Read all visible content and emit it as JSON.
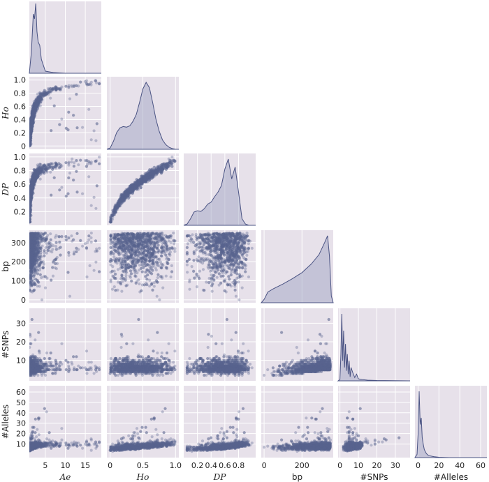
{
  "chart_data": {
    "type": "pairplot",
    "corner": true,
    "grid": true,
    "colors": {
      "panel_bg": "#e7e1ea",
      "grid": "#ffffff",
      "mark": "#5a6390",
      "kde_fill": "#a8acc6",
      "kde_line": "#4a5383"
    },
    "variables": [
      {
        "id": "Ae",
        "label": "Ae",
        "italic": true,
        "range": [
          1,
          19
        ],
        "ticks": [
          5,
          10,
          15
        ]
      },
      {
        "id": "Ho",
        "label": "Ho",
        "italic": true,
        "range": [
          -0.05,
          1.05
        ],
        "ticks": [
          0,
          0.2,
          0.4,
          0.6,
          0.8,
          1.0
        ],
        "x_ticks": [
          0,
          0.5,
          1.0
        ],
        "x_tick_labels": [
          "0",
          "0.5",
          "1.0"
        ],
        "y_tick_labels": [
          "0",
          "0.2",
          "0.4",
          "0.6",
          "0.8",
          "1.0"
        ]
      },
      {
        "id": "DP",
        "label": "DP",
        "italic": true,
        "range": [
          0,
          1.05
        ],
        "ticks": [
          0.2,
          0.4,
          0.6,
          0.8,
          1.0
        ],
        "x_ticks": [
          0.2,
          0.4,
          0.6,
          0.8
        ],
        "y_tick_labels": [
          "0.2",
          "0.4",
          "0.6",
          "0.8",
          "1.0"
        ]
      },
      {
        "id": "bp",
        "label": "bp",
        "italic": false,
        "range": [
          -15,
          365
        ],
        "ticks": [
          0,
          100,
          200,
          300
        ],
        "x_ticks": [
          0,
          200
        ]
      },
      {
        "id": "SNPs",
        "label": "#SNPs",
        "italic": false,
        "range": [
          -1,
          38
        ],
        "ticks": [
          10,
          20,
          30
        ],
        "x_ticks": [
          0,
          10,
          20,
          30
        ]
      },
      {
        "id": "Alleles",
        "label": "#Alleles",
        "italic": false,
        "range": [
          -3,
          66
        ],
        "ticks": [
          10,
          20,
          30,
          40,
          50,
          60
        ],
        "x_ticks": [
          0,
          20,
          40,
          60
        ]
      }
    ],
    "diagonal_kde": {
      "Ae": {
        "x": [
          1,
          1.5,
          2,
          2.3,
          2.6,
          2.9,
          3.2,
          3.6,
          4,
          5,
          7,
          10,
          19
        ],
        "y": [
          0,
          0.3,
          0.85,
          0.78,
          1.0,
          0.6,
          0.45,
          0.4,
          0.2,
          0.03,
          0.01,
          0,
          0
        ]
      },
      "Ho": {
        "x": [
          -0.05,
          0,
          0.05,
          0.1,
          0.15,
          0.2,
          0.25,
          0.3,
          0.35,
          0.4,
          0.45,
          0.5,
          0.55,
          0.6,
          0.65,
          0.7,
          0.75,
          0.8,
          0.85,
          0.9,
          0.95,
          1.0,
          1.05
        ],
        "y": [
          0,
          0.02,
          0.12,
          0.25,
          0.32,
          0.34,
          0.33,
          0.35,
          0.42,
          0.52,
          0.7,
          0.9,
          1.0,
          0.92,
          0.7,
          0.45,
          0.27,
          0.14,
          0.07,
          0.03,
          0.01,
          0,
          0
        ]
      },
      "DP": {
        "x": [
          0,
          0.05,
          0.1,
          0.15,
          0.2,
          0.25,
          0.3,
          0.35,
          0.4,
          0.45,
          0.5,
          0.55,
          0.6,
          0.65,
          0.7,
          0.75,
          0.8,
          0.85,
          0.9,
          0.95,
          1.0,
          1.05
        ],
        "y": [
          0,
          0.02,
          0.1,
          0.2,
          0.22,
          0.21,
          0.25,
          0.32,
          0.35,
          0.43,
          0.5,
          0.6,
          0.85,
          1.0,
          0.7,
          0.88,
          0.5,
          0.1,
          0.02,
          0,
          0,
          0
        ]
      },
      "bp": {
        "x": [
          -15,
          0,
          20,
          50,
          100,
          150,
          200,
          250,
          290,
          320,
          335,
          345,
          355,
          365
        ],
        "y": [
          0,
          0.05,
          0.16,
          0.21,
          0.28,
          0.36,
          0.45,
          0.58,
          0.72,
          0.9,
          1.0,
          0.7,
          0.1,
          0
        ]
      },
      "SNPs": {
        "x": [
          -1,
          0,
          0.5,
          1,
          1.5,
          2,
          2.5,
          3,
          3.5,
          4,
          4.5,
          5,
          5.5,
          6,
          7,
          8,
          9,
          10,
          12,
          15,
          20,
          38
        ],
        "y": [
          0,
          0.02,
          0.4,
          1.0,
          0.3,
          0.75,
          0.2,
          0.55,
          0.15,
          0.4,
          0.1,
          0.3,
          0.06,
          0.2,
          0.12,
          0.05,
          0.1,
          0.03,
          0.02,
          0.01,
          0.005,
          0
        ]
      },
      "Alleles": {
        "x": [
          -3,
          -1,
          0,
          1,
          2,
          3,
          4,
          5,
          6,
          8,
          10,
          15,
          20,
          30,
          66
        ],
        "y": [
          0,
          0.05,
          0.35,
          1.0,
          0.5,
          0.6,
          0.3,
          0.2,
          0.12,
          0.06,
          0.03,
          0.015,
          0.005,
          0,
          0
        ]
      }
    }
  }
}
